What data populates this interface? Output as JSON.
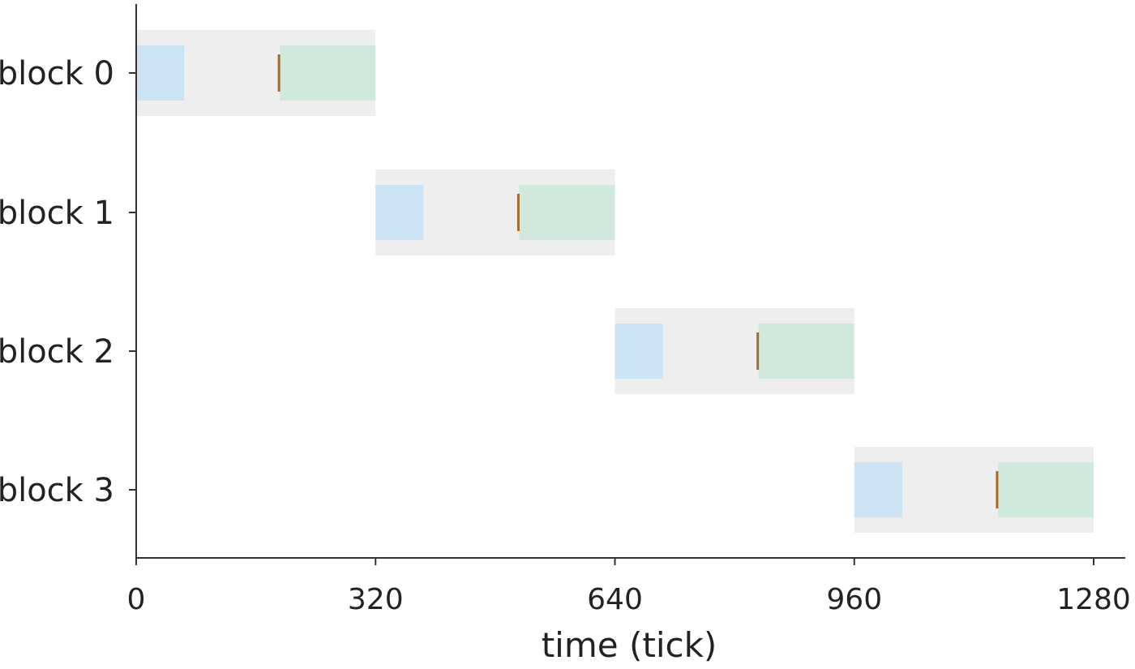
{
  "chart_data": {
    "type": "gantt",
    "xlabel": "time (tick)",
    "xlim": [
      0,
      1280
    ],
    "x_ticks": [
      0,
      320,
      640,
      960,
      1280
    ],
    "x_tick_labels": [
      "0",
      "320",
      "640",
      "960",
      "1280"
    ],
    "categories": [
      "block 0",
      "block 1",
      "block 2",
      "block 3"
    ],
    "grid": false,
    "legend": "none",
    "colors": {
      "block": "#eeeeee",
      "first_segment": "#cce3f3",
      "last_segment": "#d1e8dc",
      "marker": "#a86a2c",
      "axis": "#333333"
    },
    "rows": [
      {
        "label": "block 0",
        "block": [
          0,
          320
        ],
        "first_segment": [
          0,
          64
        ],
        "marker": 192,
        "last_segment": [
          192,
          320
        ]
      },
      {
        "label": "block 1",
        "block": [
          320,
          640
        ],
        "first_segment": [
          320,
          384
        ],
        "marker": 512,
        "last_segment": [
          512,
          640
        ]
      },
      {
        "label": "block 2",
        "block": [
          640,
          960
        ],
        "first_segment": [
          640,
          704
        ],
        "marker": 832,
        "last_segment": [
          832,
          960
        ]
      },
      {
        "label": "block 3",
        "block": [
          960,
          1280
        ],
        "first_segment": [
          960,
          1024
        ],
        "marker": 1152,
        "last_segment": [
          1152,
          1280
        ]
      }
    ]
  }
}
